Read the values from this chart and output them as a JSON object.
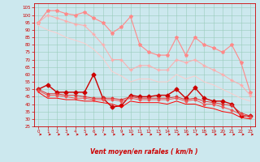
{
  "title": "",
  "xlabel": "Vent moyen/en rafales ( km/h )",
  "ylabel": "",
  "xlim": [
    -0.5,
    23.5
  ],
  "ylim": [
    25,
    108
  ],
  "background_color": "#cce8ee",
  "grid_color": "#99ccbb",
  "x": [
    0,
    1,
    2,
    3,
    4,
    5,
    6,
    7,
    8,
    9,
    10,
    11,
    12,
    13,
    14,
    15,
    16,
    17,
    18,
    19,
    20,
    21,
    22,
    23
  ],
  "series": [
    {
      "name": "rafales_max",
      "color": "#ff8888",
      "linewidth": 0.8,
      "marker": "*",
      "markersize": 3,
      "y": [
        95,
        103,
        103,
        101,
        100,
        102,
        98,
        95,
        88,
        92,
        99,
        80,
        75,
        73,
        73,
        85,
        73,
        85,
        80,
        78,
        75,
        80,
        68,
        48
      ]
    },
    {
      "name": "rafales_trend1",
      "color": "#ffaaaa",
      "linewidth": 0.7,
      "marker": "+",
      "markersize": 3,
      "y": [
        95,
        100,
        98,
        96,
        94,
        93,
        87,
        80,
        70,
        70,
        63,
        66,
        66,
        63,
        63,
        70,
        68,
        70,
        66,
        63,
        60,
        56,
        53,
        46
      ]
    },
    {
      "name": "rafales_trend2",
      "color": "#ffcccc",
      "linewidth": 0.7,
      "marker": null,
      "markersize": 0,
      "y": [
        93,
        90,
        88,
        85,
        83,
        81,
        77,
        71,
        62,
        59,
        55,
        57,
        57,
        55,
        55,
        60,
        57,
        59,
        55,
        53,
        50,
        47,
        44,
        42
      ]
    },
    {
      "name": "vent_max",
      "color": "#cc0000",
      "linewidth": 1.0,
      "marker": "D",
      "markersize": 2.5,
      "y": [
        50,
        53,
        48,
        48,
        48,
        48,
        60,
        44,
        38,
        39,
        46,
        45,
        45,
        46,
        46,
        50,
        44,
        51,
        44,
        42,
        42,
        40,
        32,
        32
      ]
    },
    {
      "name": "vent_line1",
      "color": "#dd3333",
      "linewidth": 0.7,
      "marker": "D",
      "markersize": 1.5,
      "y": [
        50,
        47,
        47,
        46,
        46,
        45,
        44,
        44,
        44,
        43,
        45,
        44,
        44,
        44,
        44,
        45,
        43,
        44,
        42,
        41,
        40,
        39,
        34,
        32
      ]
    },
    {
      "name": "vent_line2",
      "color": "#ee5555",
      "linewidth": 0.7,
      "marker": "D",
      "markersize": 1.5,
      "y": [
        49,
        46,
        46,
        45,
        44,
        44,
        43,
        43,
        43,
        42,
        44,
        43,
        43,
        43,
        43,
        44,
        42,
        43,
        40,
        40,
        38,
        36,
        33,
        31
      ]
    },
    {
      "name": "vent_min",
      "color": "#ff0000",
      "linewidth": 0.7,
      "marker": null,
      "markersize": 0,
      "y": [
        48,
        44,
        44,
        43,
        43,
        42,
        42,
        41,
        40,
        38,
        42,
        41,
        41,
        41,
        40,
        42,
        40,
        40,
        38,
        37,
        35,
        34,
        31,
        30
      ]
    }
  ],
  "yticks": [
    25,
    30,
    35,
    40,
    45,
    50,
    55,
    60,
    65,
    70,
    75,
    80,
    85,
    90,
    95,
    100,
    105
  ],
  "xticks": [
    0,
    1,
    2,
    3,
    4,
    5,
    6,
    7,
    8,
    9,
    10,
    11,
    12,
    13,
    14,
    15,
    16,
    17,
    18,
    19,
    20,
    21,
    22,
    23
  ],
  "font_color": "#cc0000",
  "tick_fontsize": 4.0,
  "xlabel_fontsize": 5.5
}
